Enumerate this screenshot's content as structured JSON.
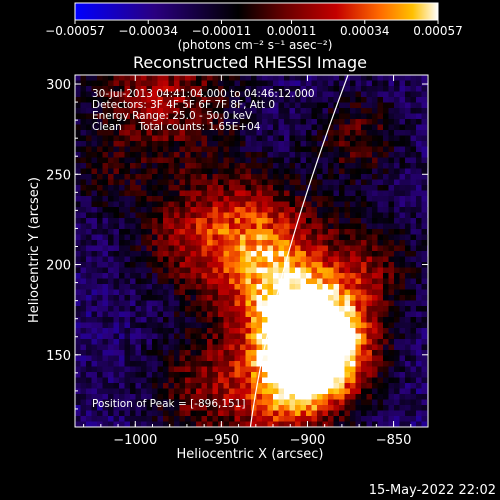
{
  "chart_data": {
    "type": "heatmap",
    "title": "Reconstructed RHESSI Image",
    "xlabel": "Heliocentric X (arcsec)",
    "ylabel": "Heliocentric Y (arcsec)",
    "xlim": [
      -1035,
      -830
    ],
    "ylim": [
      110,
      305
    ],
    "xticks": [
      -1000,
      -950,
      -900,
      -850
    ],
    "xtick_labels": [
      "−1000",
      "−950",
      "−900",
      "−850"
    ],
    "yticks": [
      150,
      200,
      250,
      300
    ],
    "ytick_labels": [
      "150",
      "200",
      "250",
      "300"
    ],
    "colorbar": {
      "ticks": [
        -0.00057,
        -0.00034,
        -0.00011,
        0.00011,
        0.00034,
        0.00057
      ],
      "tick_labels": [
        "−0.00057",
        "−0.00034",
        "−0.00011",
        "0.00011",
        "0.00034",
        "0.00057"
      ],
      "range": [
        -0.00057,
        0.00057
      ],
      "unit_label": "(photons cm⁻² s⁻¹ asec⁻²)",
      "colormap": [
        "#0000ff",
        "#2a0080",
        "#000000",
        "#6a0000",
        "#c40000",
        "#ff6a00",
        "#ffc000",
        "#ffffff"
      ]
    },
    "annotations": [
      "30-Jul-2013 04:41:04.000 to 04:46:12.000",
      "Detectors: 3F 4F 5F 6F 7F 8F, Att 0",
      "Energy Range: 25.0 - 50.0 keV",
      "Clean     Total counts: 1.65E+04"
    ],
    "peak_label": "Position of Peak = [-896,151]",
    "peak": [
      -896,
      151
    ],
    "timestamp": "15-May-2022 22:02",
    "grid": false
  }
}
